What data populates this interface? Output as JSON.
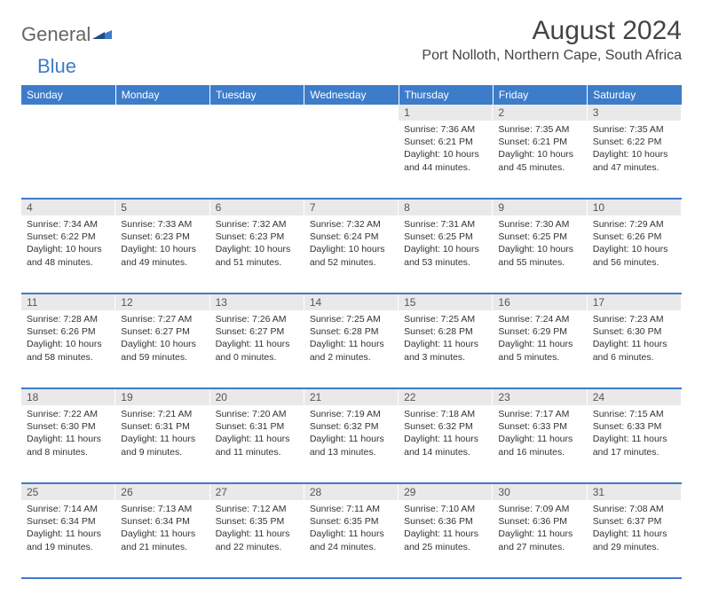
{
  "logo": {
    "general": "General",
    "blue": "Blue"
  },
  "title": "August 2024",
  "location": "Port Nolloth, Northern Cape, South Africa",
  "colors": {
    "accent": "#3d7cc9",
    "daynum_bg": "#e9e9e9",
    "text": "#333333",
    "background": "#ffffff"
  },
  "weekdays": [
    "Sunday",
    "Monday",
    "Tuesday",
    "Wednesday",
    "Thursday",
    "Friday",
    "Saturday"
  ],
  "startOffset": 4,
  "days": [
    {
      "n": 1,
      "sunrise": "7:36 AM",
      "sunset": "6:21 PM",
      "daylight": "10 hours and 44 minutes."
    },
    {
      "n": 2,
      "sunrise": "7:35 AM",
      "sunset": "6:21 PM",
      "daylight": "10 hours and 45 minutes."
    },
    {
      "n": 3,
      "sunrise": "7:35 AM",
      "sunset": "6:22 PM",
      "daylight": "10 hours and 47 minutes."
    },
    {
      "n": 4,
      "sunrise": "7:34 AM",
      "sunset": "6:22 PM",
      "daylight": "10 hours and 48 minutes."
    },
    {
      "n": 5,
      "sunrise": "7:33 AM",
      "sunset": "6:23 PM",
      "daylight": "10 hours and 49 minutes."
    },
    {
      "n": 6,
      "sunrise": "7:32 AM",
      "sunset": "6:23 PM",
      "daylight": "10 hours and 51 minutes."
    },
    {
      "n": 7,
      "sunrise": "7:32 AM",
      "sunset": "6:24 PM",
      "daylight": "10 hours and 52 minutes."
    },
    {
      "n": 8,
      "sunrise": "7:31 AM",
      "sunset": "6:25 PM",
      "daylight": "10 hours and 53 minutes."
    },
    {
      "n": 9,
      "sunrise": "7:30 AM",
      "sunset": "6:25 PM",
      "daylight": "10 hours and 55 minutes."
    },
    {
      "n": 10,
      "sunrise": "7:29 AM",
      "sunset": "6:26 PM",
      "daylight": "10 hours and 56 minutes."
    },
    {
      "n": 11,
      "sunrise": "7:28 AM",
      "sunset": "6:26 PM",
      "daylight": "10 hours and 58 minutes."
    },
    {
      "n": 12,
      "sunrise": "7:27 AM",
      "sunset": "6:27 PM",
      "daylight": "10 hours and 59 minutes."
    },
    {
      "n": 13,
      "sunrise": "7:26 AM",
      "sunset": "6:27 PM",
      "daylight": "11 hours and 0 minutes."
    },
    {
      "n": 14,
      "sunrise": "7:25 AM",
      "sunset": "6:28 PM",
      "daylight": "11 hours and 2 minutes."
    },
    {
      "n": 15,
      "sunrise": "7:25 AM",
      "sunset": "6:28 PM",
      "daylight": "11 hours and 3 minutes."
    },
    {
      "n": 16,
      "sunrise": "7:24 AM",
      "sunset": "6:29 PM",
      "daylight": "11 hours and 5 minutes."
    },
    {
      "n": 17,
      "sunrise": "7:23 AM",
      "sunset": "6:30 PM",
      "daylight": "11 hours and 6 minutes."
    },
    {
      "n": 18,
      "sunrise": "7:22 AM",
      "sunset": "6:30 PM",
      "daylight": "11 hours and 8 minutes."
    },
    {
      "n": 19,
      "sunrise": "7:21 AM",
      "sunset": "6:31 PM",
      "daylight": "11 hours and 9 minutes."
    },
    {
      "n": 20,
      "sunrise": "7:20 AM",
      "sunset": "6:31 PM",
      "daylight": "11 hours and 11 minutes."
    },
    {
      "n": 21,
      "sunrise": "7:19 AM",
      "sunset": "6:32 PM",
      "daylight": "11 hours and 13 minutes."
    },
    {
      "n": 22,
      "sunrise": "7:18 AM",
      "sunset": "6:32 PM",
      "daylight": "11 hours and 14 minutes."
    },
    {
      "n": 23,
      "sunrise": "7:17 AM",
      "sunset": "6:33 PM",
      "daylight": "11 hours and 16 minutes."
    },
    {
      "n": 24,
      "sunrise": "7:15 AM",
      "sunset": "6:33 PM",
      "daylight": "11 hours and 17 minutes."
    },
    {
      "n": 25,
      "sunrise": "7:14 AM",
      "sunset": "6:34 PM",
      "daylight": "11 hours and 19 minutes."
    },
    {
      "n": 26,
      "sunrise": "7:13 AM",
      "sunset": "6:34 PM",
      "daylight": "11 hours and 21 minutes."
    },
    {
      "n": 27,
      "sunrise": "7:12 AM",
      "sunset": "6:35 PM",
      "daylight": "11 hours and 22 minutes."
    },
    {
      "n": 28,
      "sunrise": "7:11 AM",
      "sunset": "6:35 PM",
      "daylight": "11 hours and 24 minutes."
    },
    {
      "n": 29,
      "sunrise": "7:10 AM",
      "sunset": "6:36 PM",
      "daylight": "11 hours and 25 minutes."
    },
    {
      "n": 30,
      "sunrise": "7:09 AM",
      "sunset": "6:36 PM",
      "daylight": "11 hours and 27 minutes."
    },
    {
      "n": 31,
      "sunrise": "7:08 AM",
      "sunset": "6:37 PM",
      "daylight": "11 hours and 29 minutes."
    }
  ],
  "labels": {
    "sunrise": "Sunrise:",
    "sunset": "Sunset:",
    "daylight": "Daylight:"
  }
}
